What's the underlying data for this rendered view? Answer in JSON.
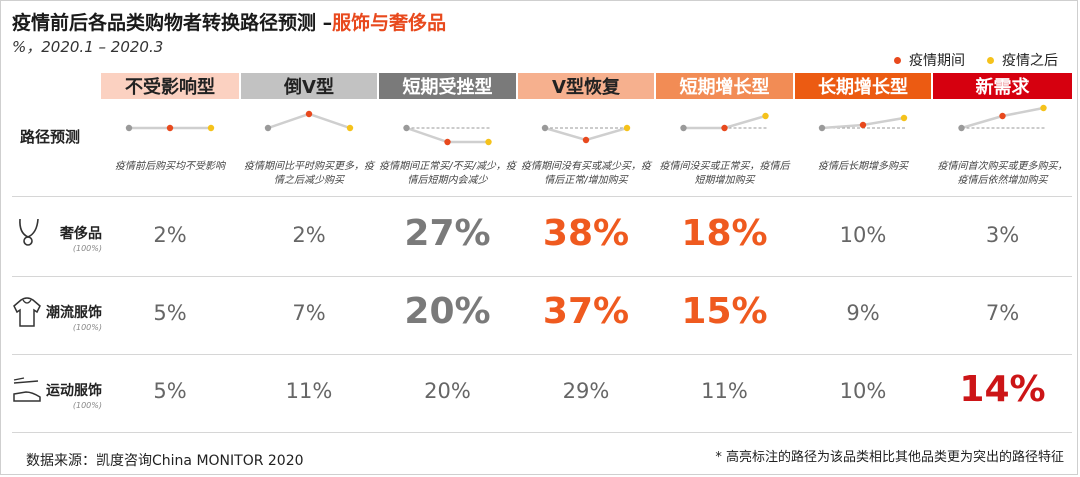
{
  "title_prefix": "疫情前后各品类购物者转换路径预测 –",
  "title_highlight": "服饰与奢侈品",
  "subtitle": "%，2020.1 – 2020.3",
  "legend": [
    {
      "label": "疫情期间",
      "color": "#e8491d"
    },
    {
      "label": "疫情之后",
      "color": "#f5c21b"
    }
  ],
  "row_label": "路径预测",
  "colors": {
    "highlight_orange": "#ef5a1f",
    "highlight_red": "#cc1517",
    "normal_value": "#666666",
    "big_gray": "#7a7a7a"
  },
  "paths": [
    {
      "name": "不受影响型",
      "header_bg": "#fbd1c1",
      "header_color": "#222222",
      "desc": "疫情前后购买均不受影响"
    },
    {
      "name": "倒V型",
      "header_bg": "#c2c2c2",
      "header_color": "#222222",
      "desc": "疫情期间比平时购买更多，疫情之后减少购买"
    },
    {
      "name": "短期受挫型",
      "header_bg": "#7a7a7a",
      "header_color": "#ffffff",
      "desc": "疫情期间正常买/不买/减少，疫情后短期内会减少"
    },
    {
      "name": "V型恢复",
      "header_bg": "#f6b08e",
      "header_color": "#222222",
      "desc": "疫情期间没有买或减少买，疫情后正常/增加购买"
    },
    {
      "name": "短期增长型",
      "header_bg": "#f28c55",
      "header_color": "#ffffff",
      "desc": "疫情间没买或正常买，疫情后短期增加购买"
    },
    {
      "name": "长期增长型",
      "header_bg": "#ec5b12",
      "header_color": "#ffffff",
      "desc": "疫情后长期增多购买"
    },
    {
      "name": "新需求",
      "header_bg": "#d6000f",
      "header_color": "#ffffff",
      "desc": "疫情间首次购买或更多购买，疫情后依然增加购买"
    }
  ],
  "categories": [
    {
      "name": "奢侈品",
      "pct": "(100%)",
      "icon": "necklace-icon"
    },
    {
      "name": "潮流服饰",
      "pct": "(100%)",
      "icon": "hoodie-icon"
    },
    {
      "name": "运动服饰",
      "pct": "(100%)",
      "icon": "sneaker-icon"
    }
  ],
  "chart_data": {
    "type": "table",
    "columns": [
      "不受影响型",
      "倒V型",
      "短期受挫型",
      "V型恢复",
      "短期增长型",
      "长期增长型",
      "新需求"
    ],
    "rows": [
      {
        "category": "奢侈品",
        "values": [
          "2%",
          "2%",
          "27%",
          "38%",
          "18%",
          "10%",
          "3%"
        ],
        "emphasis": [
          "normal",
          "normal",
          "big-gray",
          "big-orange",
          "big-orange",
          "normal",
          "normal"
        ]
      },
      {
        "category": "潮流服饰",
        "values": [
          "5%",
          "7%",
          "20%",
          "37%",
          "15%",
          "9%",
          "7%"
        ],
        "emphasis": [
          "normal",
          "normal",
          "big-gray",
          "big-orange",
          "big-orange",
          "normal",
          "normal"
        ]
      },
      {
        "category": "运动服饰",
        "values": [
          "5%",
          "11%",
          "20%",
          "29%",
          "11%",
          "10%",
          "14%"
        ],
        "emphasis": [
          "normal",
          "normal",
          "normal",
          "normal",
          "normal",
          "normal",
          "big-red"
        ]
      }
    ]
  },
  "source": "数据来源：凯度咨询China MONITOR 2020",
  "note": "* 高亮标注的路径为该品类相比其他品类更为突出的路径特征"
}
